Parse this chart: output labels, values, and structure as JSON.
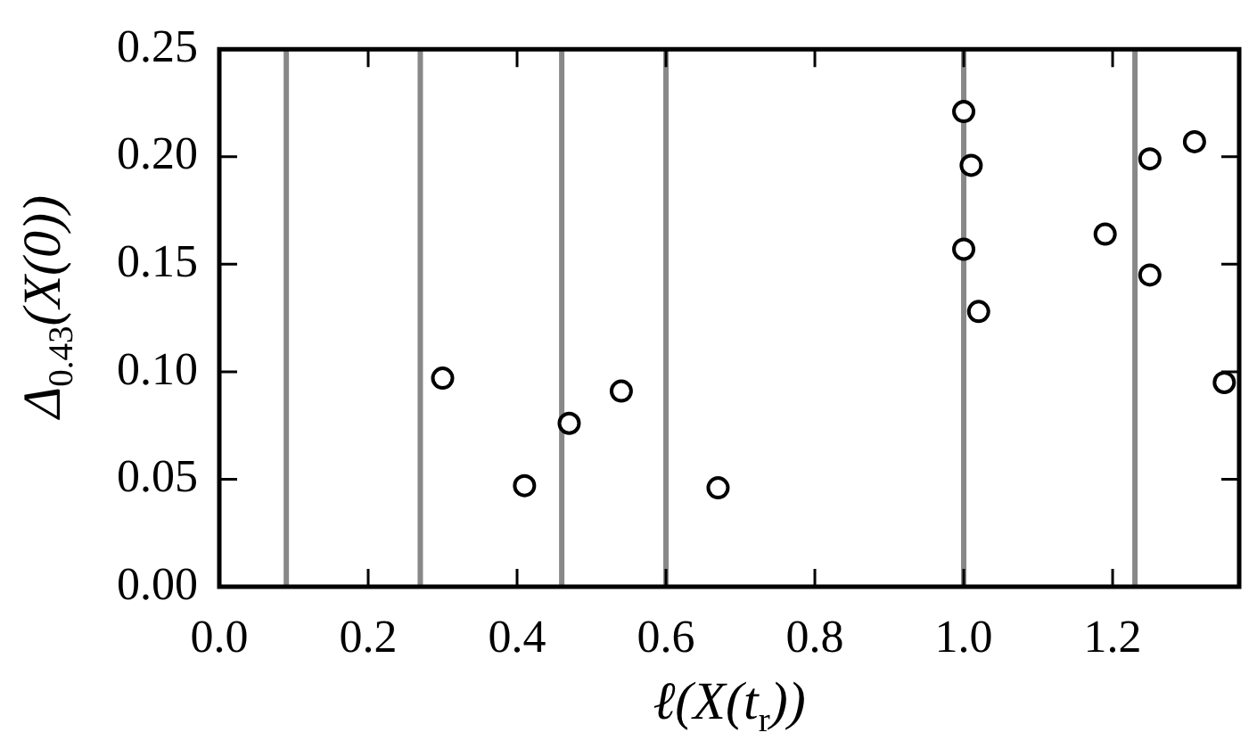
{
  "chart_data": {
    "type": "scatter",
    "xlabel": "ℓ(X(t$_{r}$))",
    "ylabel": "Δ$_{0.43}$(X(0))",
    "x": [
      0.3,
      0.41,
      0.47,
      0.54,
      0.67,
      1.0,
      1.01,
      1.0,
      1.02,
      1.19,
      1.25,
      1.25,
      1.31,
      1.35
    ],
    "values": [
      0.097,
      0.047,
      0.076,
      0.091,
      0.046,
      0.221,
      0.196,
      0.157,
      0.128,
      0.164,
      0.199,
      0.145,
      0.207,
      0.095
    ],
    "color": "#000000",
    "marker": "circle",
    "grid": false,
    "xlim": [
      0,
      1.37
    ],
    "ylim": [
      0,
      0.25
    ],
    "xticks": [
      {
        "value": 0,
        "label": "0.0"
      },
      {
        "value": 0.2,
        "label": "0.2"
      },
      {
        "value": 0.4,
        "label": "0.4"
      },
      {
        "value": 0.6,
        "label": "0.6"
      },
      {
        "value": 0.8,
        "label": "0.8"
      },
      {
        "value": 1,
        "label": "1.0"
      },
      {
        "value": 1.2,
        "label": "1.2"
      }
    ],
    "yticks": [
      {
        "value": 0,
        "label": "0.00"
      },
      {
        "value": 0.05,
        "label": "0.05"
      },
      {
        "value": 0.1,
        "label": "0.10"
      },
      {
        "value": 0.15,
        "label": "0.15"
      },
      {
        "value": 0.2,
        "label": "0.20"
      },
      {
        "value": 0.25,
        "label": "0.25"
      }
    ],
    "ref_lines": [
      {
        "axis": "x",
        "value": 0.09,
        "color": "#888888"
      },
      {
        "axis": "x",
        "value": 0.27,
        "color": "#888888"
      },
      {
        "axis": "x",
        "value": 0.46,
        "color": "#888888"
      },
      {
        "axis": "x",
        "value": 0.6,
        "color": "#888888"
      },
      {
        "axis": "x",
        "value": 1.0,
        "color": "#888888"
      },
      {
        "axis": "x",
        "value": 1.23,
        "color": "#888888"
      }
    ]
  }
}
